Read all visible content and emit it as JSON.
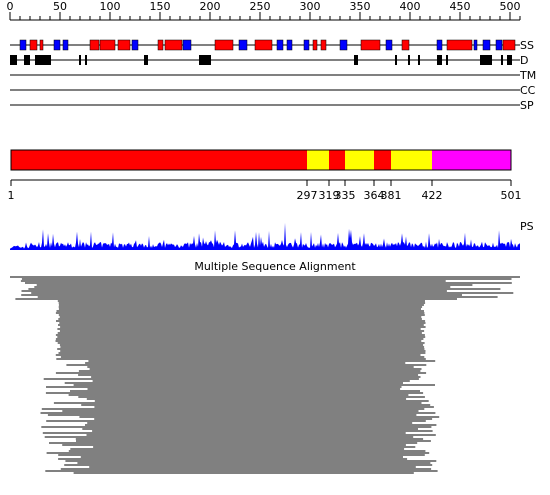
{
  "ruler": {
    "ticks": [
      "0",
      "50",
      "100",
      "150",
      "200",
      "250",
      "300",
      "350",
      "400",
      "450",
      "500"
    ],
    "max": 510
  },
  "track_labels": [
    "SS",
    "D",
    "TM",
    "CC",
    "SP"
  ],
  "colors": {
    "helix": "#ff0000",
    "strand": "#0000ff",
    "disorder": "#000000",
    "seg_red": "#ff0000",
    "seg_yellow": "#ffff00",
    "seg_magenta": "#ff00ff",
    "profile": "#0000ff",
    "alignment": "#000000"
  },
  "ss_elements": [
    {
      "type": "strand",
      "start": 10,
      "end": 16
    },
    {
      "type": "helix",
      "start": 20,
      "end": 27
    },
    {
      "type": "helix",
      "start": 30,
      "end": 33
    },
    {
      "type": "strand",
      "start": 44,
      "end": 50
    },
    {
      "type": "strand",
      "start": 53,
      "end": 58
    },
    {
      "type": "helix",
      "start": 80,
      "end": 89
    },
    {
      "type": "helix",
      "start": 90,
      "end": 105
    },
    {
      "type": "helix",
      "start": 108,
      "end": 120
    },
    {
      "type": "strand",
      "start": 122,
      "end": 128
    },
    {
      "type": "helix",
      "start": 148,
      "end": 153
    },
    {
      "type": "helix",
      "start": 155,
      "end": 172
    },
    {
      "type": "strand",
      "start": 173,
      "end": 181
    },
    {
      "type": "helix",
      "start": 205,
      "end": 223
    },
    {
      "type": "strand",
      "start": 229,
      "end": 237
    },
    {
      "type": "helix",
      "start": 245,
      "end": 262
    },
    {
      "type": "strand",
      "start": 267,
      "end": 273
    },
    {
      "type": "strand",
      "start": 277,
      "end": 282
    },
    {
      "type": "strand",
      "start": 294,
      "end": 299
    },
    {
      "type": "helix",
      "start": 303,
      "end": 307
    },
    {
      "type": "helix",
      "start": 311,
      "end": 316
    },
    {
      "type": "strand",
      "start": 330,
      "end": 337
    },
    {
      "type": "helix",
      "start": 351,
      "end": 370
    },
    {
      "type": "strand",
      "start": 376,
      "end": 382
    },
    {
      "type": "helix",
      "start": 392,
      "end": 399
    },
    {
      "type": "strand",
      "start": 427,
      "end": 432
    },
    {
      "type": "helix",
      "start": 437,
      "end": 462
    },
    {
      "type": "strand",
      "start": 464,
      "end": 467
    },
    {
      "type": "strand",
      "start": 473,
      "end": 480
    },
    {
      "type": "strand",
      "start": 486,
      "end": 492
    },
    {
      "type": "helix",
      "start": 493,
      "end": 505
    }
  ],
  "disorder": [
    {
      "start": 0,
      "end": 7
    },
    {
      "start": 14,
      "end": 20
    },
    {
      "start": 25,
      "end": 41
    },
    {
      "start": 69,
      "end": 71
    },
    {
      "start": 75,
      "end": 77
    },
    {
      "start": 134,
      "end": 138
    },
    {
      "start": 189,
      "end": 201
    },
    {
      "start": 344,
      "end": 348
    },
    {
      "start": 385,
      "end": 387
    },
    {
      "start": 398,
      "end": 400
    },
    {
      "start": 408,
      "end": 410
    },
    {
      "start": 427,
      "end": 432
    },
    {
      "start": 436,
      "end": 438
    },
    {
      "start": 470,
      "end": 482
    },
    {
      "start": 491,
      "end": 493
    },
    {
      "start": 497,
      "end": 502
    }
  ],
  "segments": [
    {
      "start": 1,
      "end": 297,
      "color": "#ff0000"
    },
    {
      "start": 297,
      "end": 319,
      "color": "#ffff00"
    },
    {
      "start": 319,
      "end": 335,
      "color": "#ff0000"
    },
    {
      "start": 335,
      "end": 364,
      "color": "#ffff00"
    },
    {
      "start": 364,
      "end": 381,
      "color": "#ff0000"
    },
    {
      "start": 381,
      "end": 422,
      "color": "#ffff00"
    },
    {
      "start": 422,
      "end": 501,
      "color": "#ff00ff"
    }
  ],
  "boundary_labels": [
    "1",
    "297",
    "319",
    "335",
    "364",
    "381",
    "422",
    "501"
  ],
  "ps_label": "PS",
  "msa_title": "Multiple Sequence Alignment"
}
